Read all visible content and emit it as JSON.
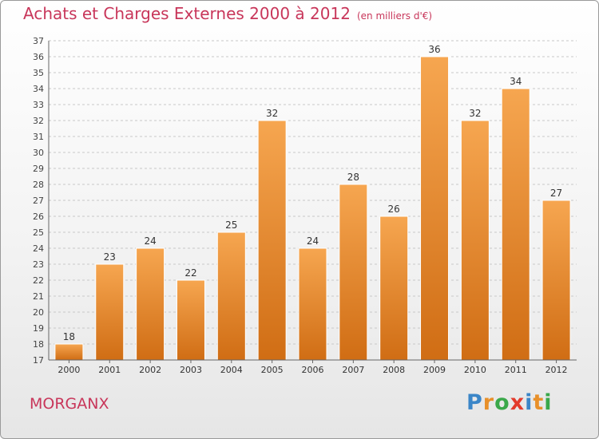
{
  "title": "Achats et Charges Externes 2000 à 2012",
  "unit": "(en milliers d'€)",
  "place": "MORGANX",
  "logo": {
    "letters": [
      {
        "ch": "P",
        "color": "#3b86c8"
      },
      {
        "ch": "r",
        "color": "#e8902a"
      },
      {
        "ch": "o",
        "color": "#3aa84a"
      },
      {
        "ch": "x",
        "color": "#e33b2c"
      },
      {
        "ch": "i",
        "color": "#3b86c8"
      },
      {
        "ch": "t",
        "color": "#e8902a"
      },
      {
        "ch": "i",
        "color": "#3aa84a"
      }
    ]
  },
  "colors": {
    "bar_top": "#f6a650",
    "bar_bottom": "#d06d14",
    "title": "#c8365a"
  },
  "chart_data": {
    "type": "bar",
    "title": "Achats et Charges Externes 2000 à 2012",
    "categories": [
      "2000",
      "2001",
      "2002",
      "2003",
      "2004",
      "2005",
      "2006",
      "2007",
      "2008",
      "2009",
      "2010",
      "2011",
      "2012"
    ],
    "values": [
      18,
      23,
      24,
      22,
      25,
      32,
      24,
      28,
      26,
      36,
      32,
      34,
      27
    ],
    "ylim": [
      17,
      37
    ],
    "yticks": [
      17,
      18,
      19,
      20,
      21,
      22,
      23,
      24,
      25,
      26,
      27,
      28,
      29,
      30,
      31,
      32,
      33,
      34,
      35,
      36,
      37
    ],
    "grid": true,
    "xlabel": "",
    "ylabel": ""
  }
}
